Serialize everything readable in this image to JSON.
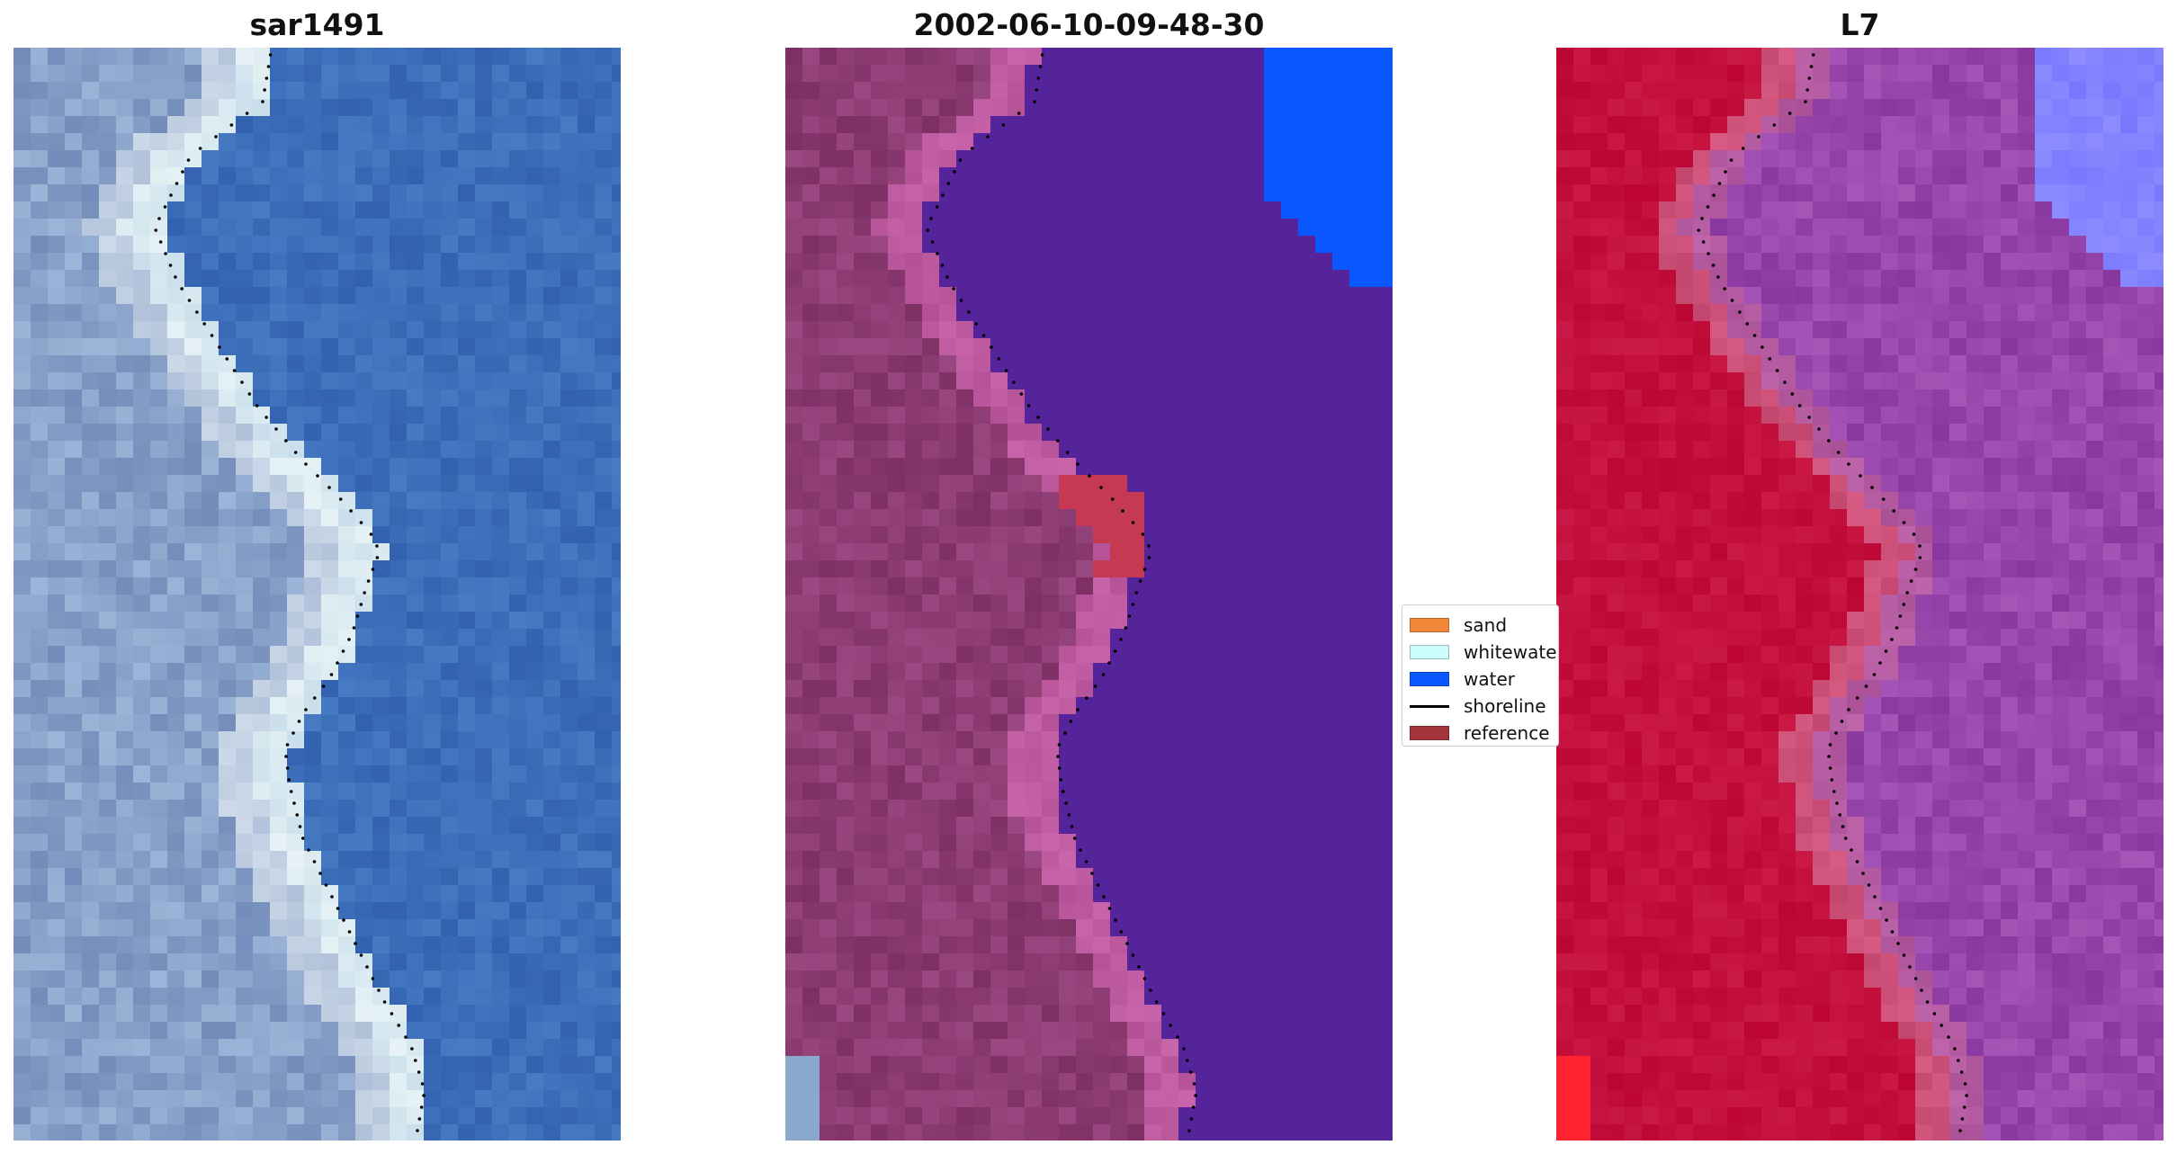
{
  "panels": [
    {
      "title": "sar1491"
    },
    {
      "title": "2002-06-10-09-48-30"
    },
    {
      "title": "L7"
    }
  ],
  "legend": {
    "items": [
      {
        "label": "sand",
        "color": "#f4883a",
        "kind": "patch"
      },
      {
        "label": "whitewater",
        "color": "#ccfefe",
        "kind": "patch"
      },
      {
        "label": "water",
        "color": "#0b57fe",
        "kind": "patch"
      },
      {
        "label": "shoreline",
        "color": "#000000",
        "kind": "line"
      },
      {
        "label": "reference",
        "color": "#a3343c",
        "kind": "patch"
      }
    ]
  },
  "colors": {
    "rgb_water": "#3f6db8",
    "rgb_land": "#8aa3c8",
    "rgb_surf": "#e8f2f6",
    "class_land": "#8a3a78",
    "class_water_overlay": "#55239a",
    "class_reference": "#c53a52",
    "nir_land": "#c4103e",
    "nir_water": "#8a3ea0",
    "shoreline_dots": "#000000"
  }
}
